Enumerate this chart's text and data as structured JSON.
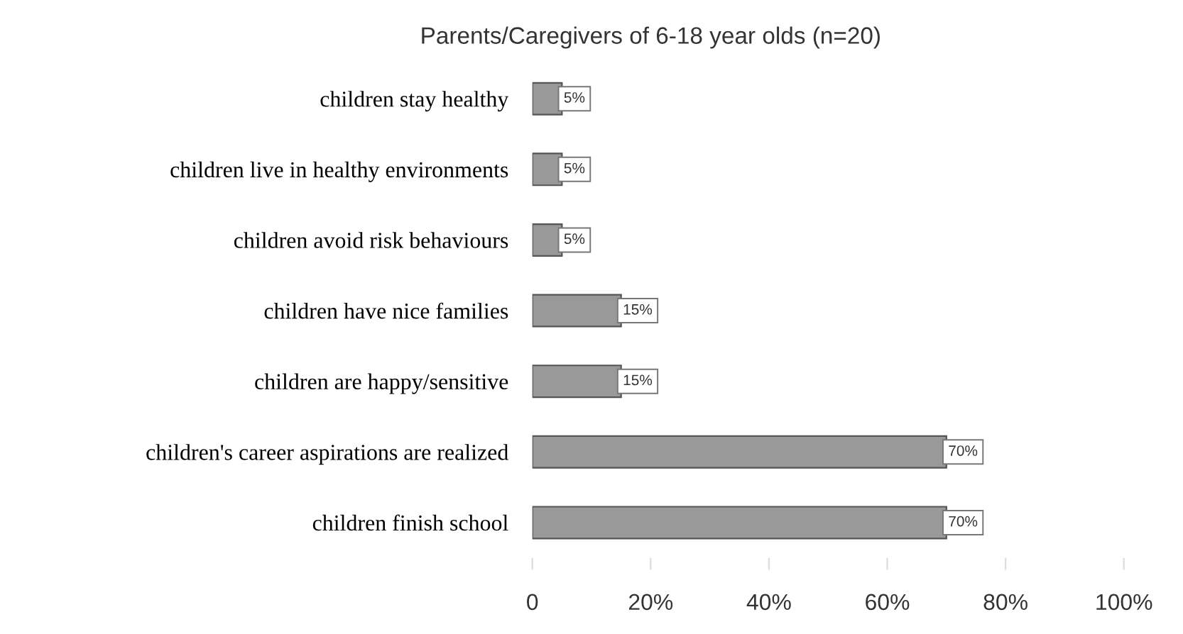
{
  "chart_data": {
    "type": "bar",
    "orientation": "horizontal",
    "title": "Parents/Caregivers of 6-18 year olds (n=20)",
    "categories": [
      "children stay healthy",
      "children live in healthy environments",
      "children avoid risk behaviours",
      "children have nice families",
      "children are happy/sensitive",
      "children's career aspirations are realized",
      "children finish school"
    ],
    "values": [
      5,
      5,
      5,
      15,
      15,
      70,
      70
    ],
    "value_labels": [
      "5%",
      "5%",
      "5%",
      "15%",
      "15%",
      "70%",
      "70%"
    ],
    "color": "#999999",
    "xlim": [
      0,
      100
    ],
    "xticks": [
      {
        "value": 0,
        "label": "0"
      },
      {
        "value": 20,
        "label": "20%"
      },
      {
        "value": 40,
        "label": "40%"
      },
      {
        "value": 60,
        "label": "60%"
      },
      {
        "value": 80,
        "label": "80%"
      },
      {
        "value": 100,
        "label": "100%"
      }
    ],
    "grid": false
  }
}
